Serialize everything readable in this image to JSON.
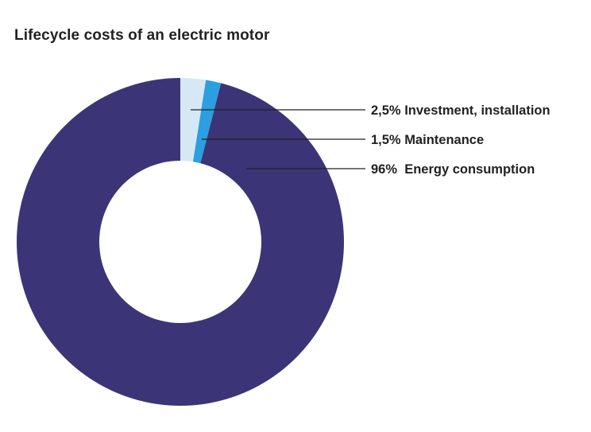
{
  "chart_data": {
    "type": "pie",
    "variant": "donut",
    "title": "Lifecycle costs of an electric motor",
    "slices": [
      {
        "label": "2,5% Investment, installation",
        "name": "Investment, installation",
        "value": 2.5,
        "color": "#d6e8f6"
      },
      {
        "label": "1,5% Maintenance",
        "name": "Maintenance",
        "value": 1.5,
        "color": "#2b9fe0"
      },
      {
        "label": "96%  Energy consumption",
        "name": "Energy consumption",
        "value": 96,
        "color": "#3b3577"
      }
    ],
    "start": "top",
    "direction": "clockwise"
  }
}
